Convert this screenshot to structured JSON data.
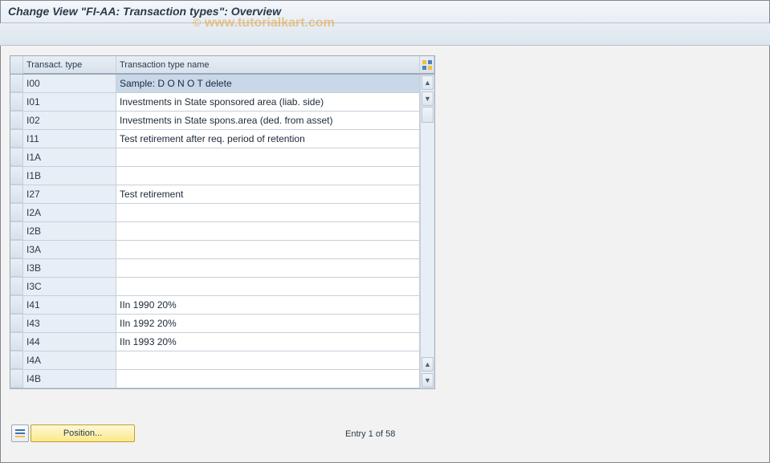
{
  "title": "Change View \"FI-AA: Transaction types\": Overview",
  "watermark": "www.tutorialkart.com",
  "columns": {
    "type": "Transact. type",
    "name": "Transaction type name"
  },
  "rows": [
    {
      "type": "I00",
      "name": "Sample:  D O  N O T delete",
      "selected": true
    },
    {
      "type": "I01",
      "name": "Investments in State sponsored area (liab. side)"
    },
    {
      "type": "I02",
      "name": "Investments in State spons.area (ded. from asset)"
    },
    {
      "type": "I11",
      "name": "Test retirement after req. period of retention"
    },
    {
      "type": "I1A",
      "name": ""
    },
    {
      "type": "I1B",
      "name": ""
    },
    {
      "type": "I27",
      "name": "Test retirement"
    },
    {
      "type": "I2A",
      "name": ""
    },
    {
      "type": "I2B",
      "name": ""
    },
    {
      "type": "I3A",
      "name": ""
    },
    {
      "type": "I3B",
      "name": ""
    },
    {
      "type": "I3C",
      "name": ""
    },
    {
      "type": "I41",
      "name": "IIn 1990 20%"
    },
    {
      "type": "I43",
      "name": "IIn 1992 20%"
    },
    {
      "type": "I44",
      "name": "IIn 1993 20%"
    },
    {
      "type": "I4A",
      "name": ""
    },
    {
      "type": "I4B",
      "name": ""
    }
  ],
  "footer": {
    "position_label": "Position...",
    "entry_text": "Entry 1 of 58"
  }
}
